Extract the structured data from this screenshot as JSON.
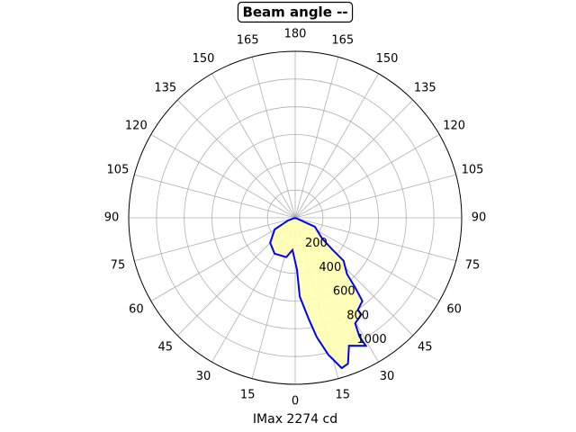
{
  "chart_data": {
    "type": "polar",
    "title": "Beam angle --",
    "xlabel": "IMax 2274 cd",
    "theta": [
      90,
      65.6,
      52.5,
      49.4,
      48.4,
      42.6,
      40.7,
      38.9,
      34.2,
      34.4,
      29.6,
      28.4,
      28.9,
      22.8,
      19.9,
      17.2,
      13.6,
      10.2,
      7.6,
      3.3,
      2,
      355.2,
      347.2,
      330.1,
      315,
      299.5,
      290.6,
      270
    ],
    "values": [
      0,
      156,
      244,
      357,
      466,
      552,
      663,
      771,
      803,
      844,
      875,
      975,
      1054,
      1000,
      1118,
      1134,
      1015,
      872,
      735,
      568,
      374,
      233,
      291,
      298,
      255,
      170,
      55,
      0
    ],
    "color": "#0000ff",
    "fill": "#ffffb3",
    "rlim": [
      0,
      1200
    ],
    "rticks": [
      200,
      400,
      600,
      800,
      1000
    ],
    "thetaticks": [
      0,
      15,
      30,
      45,
      60,
      75,
      90,
      105,
      120,
      135,
      150,
      165,
      180,
      {
        "value": 195,
        "label": "165"
      },
      {
        "value": 210,
        "label": "150"
      },
      {
        "value": 225,
        "label": "135"
      },
      {
        "value": 240,
        "label": "120"
      },
      {
        "value": 255,
        "label": "105"
      },
      {
        "value": 270,
        "label": "90"
      },
      {
        "value": 285,
        "label": "75"
      },
      {
        "value": 300,
        "label": "60"
      },
      {
        "value": 315,
        "label": "45"
      },
      {
        "value": 330,
        "label": "30"
      },
      {
        "value": 345,
        "label": "15"
      }
    ],
    "grid": true
  }
}
